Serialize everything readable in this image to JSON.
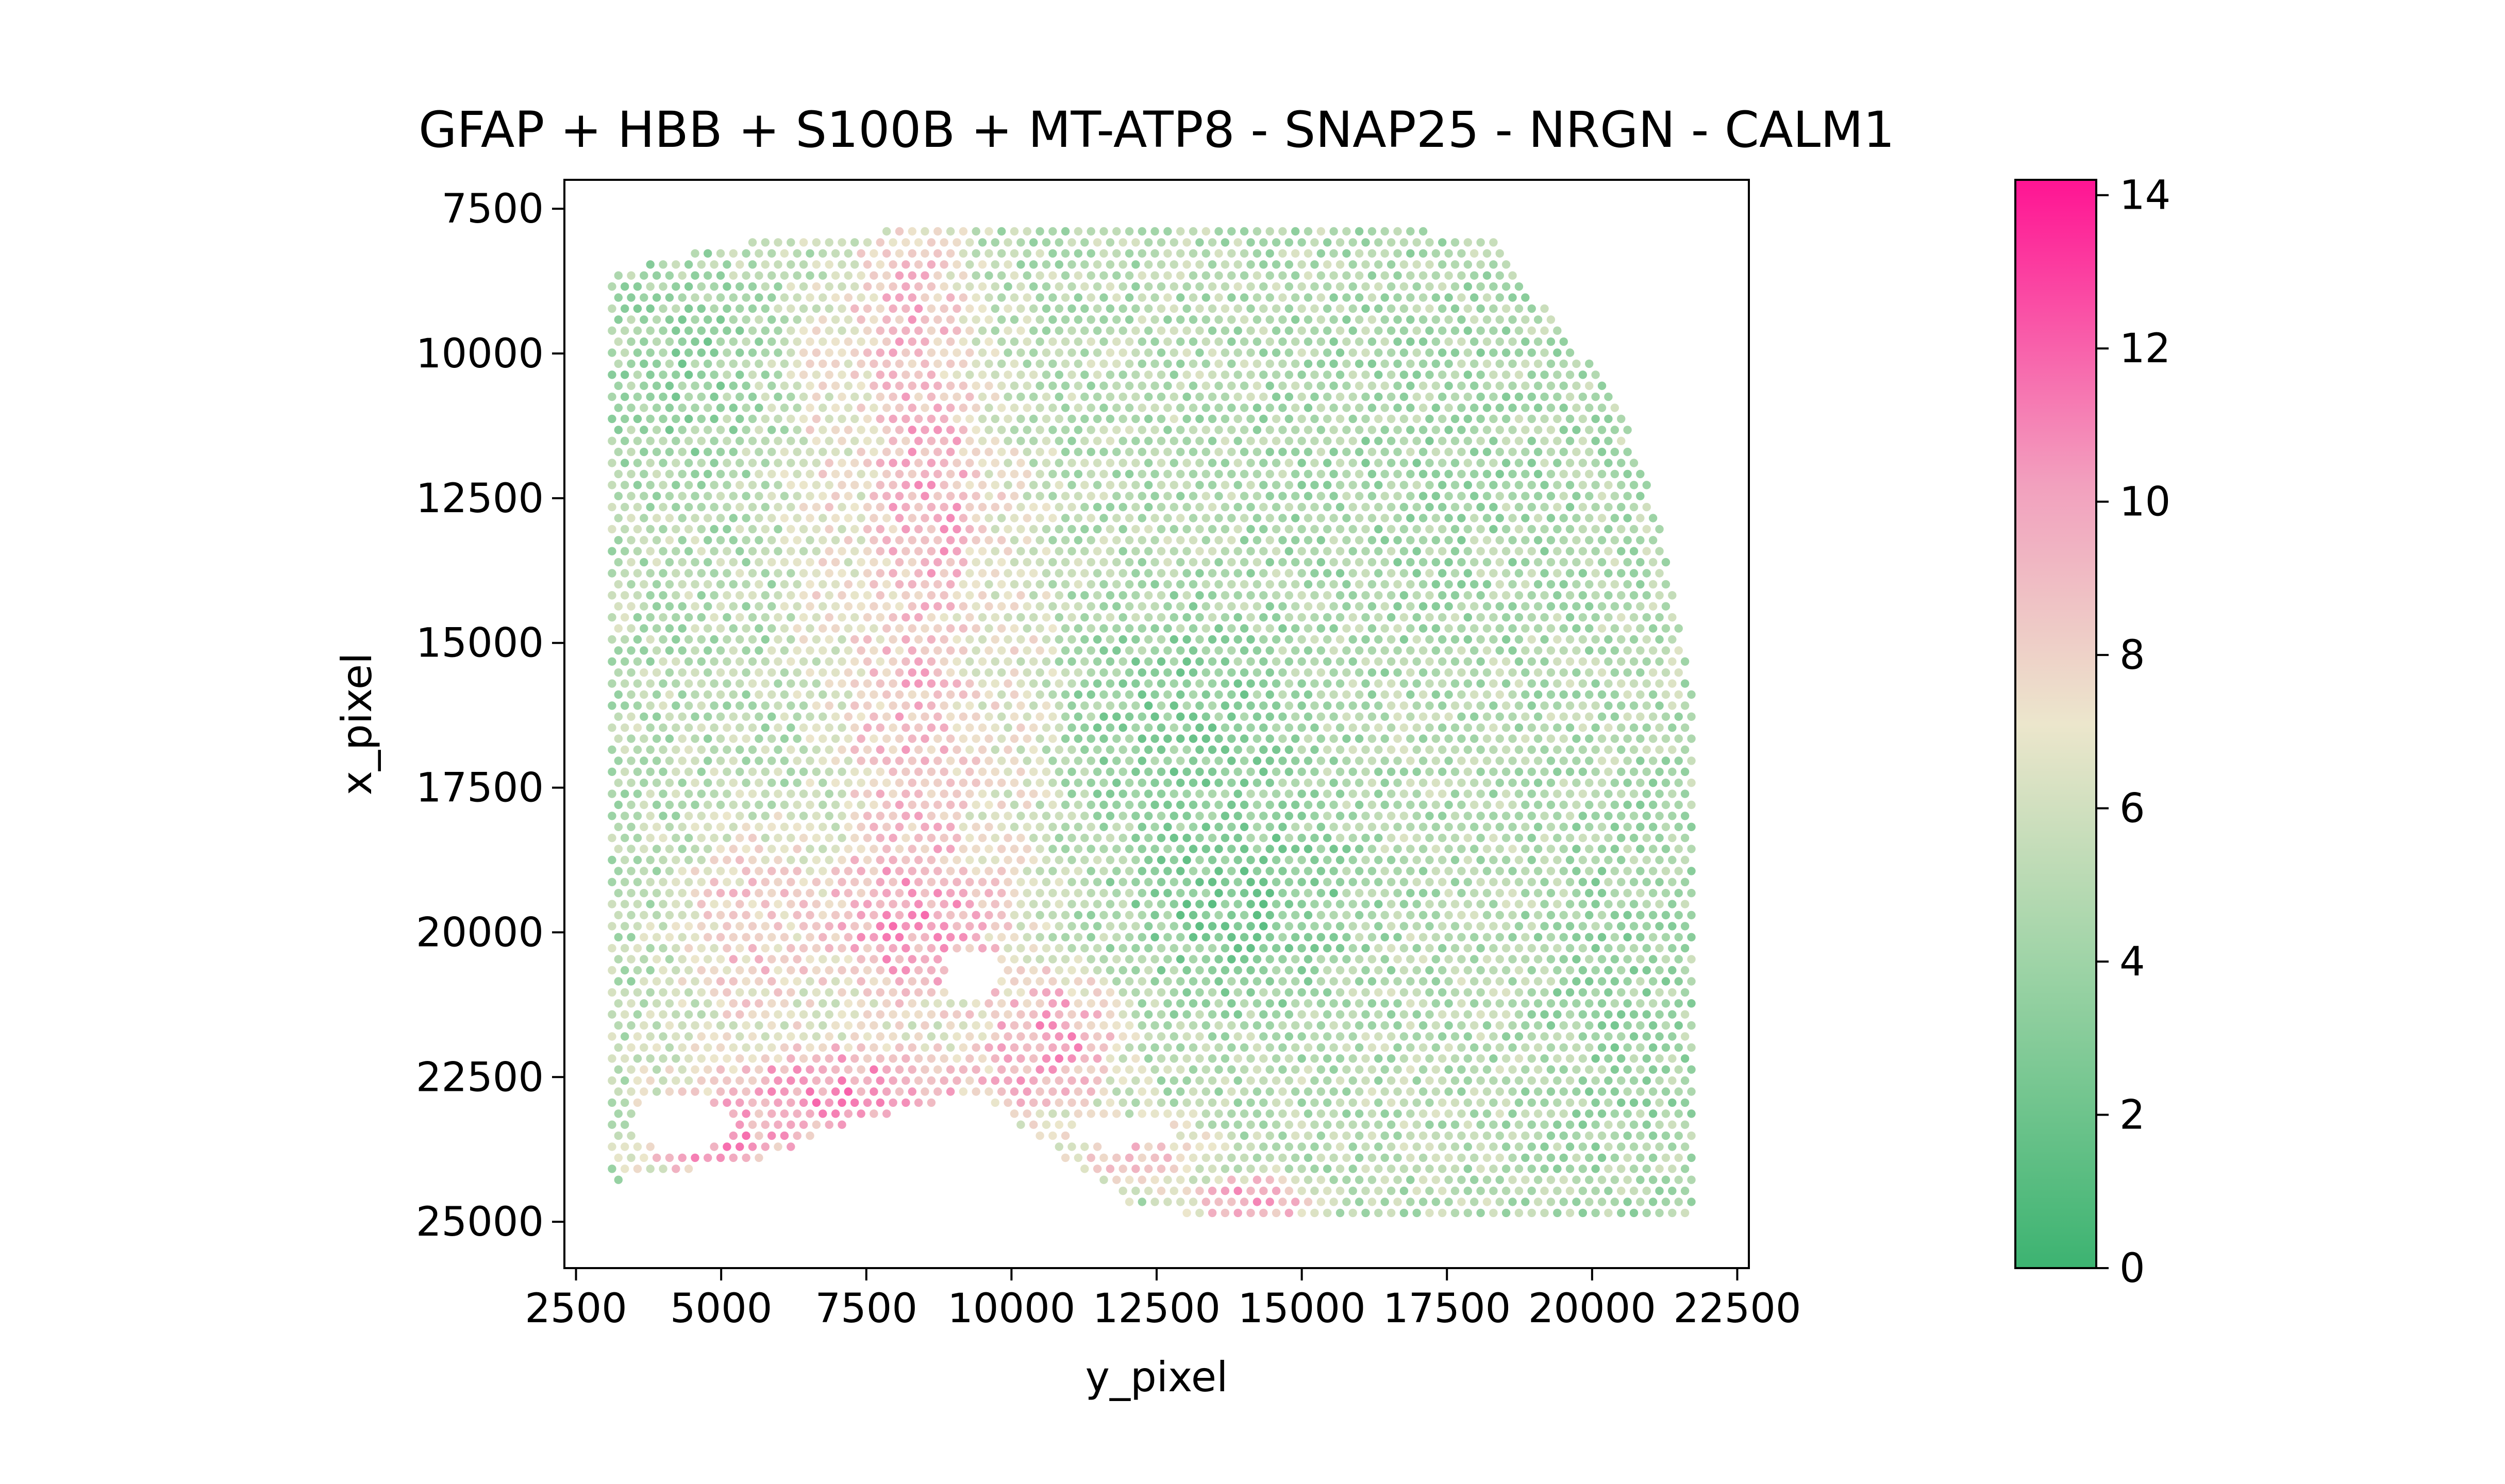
{
  "chart_data": {
    "type": "scatter",
    "title": "GFAP + HBB + S100B + MT-ATP8 - SNAP25 - NRGN - CALM1",
    "xlabel": "y_pixel",
    "ylabel": "x_pixel",
    "xlim": [
      2300,
      22700
    ],
    "ylim": [
      25800,
      7000
    ],
    "y_inverted": true,
    "xticks": [
      2500,
      5000,
      7500,
      10000,
      12500,
      15000,
      17500,
      20000,
      22500
    ],
    "yticks": [
      7500,
      10000,
      12500,
      15000,
      17500,
      20000,
      22500,
      25000
    ],
    "grid": false,
    "spot_spacing": 220,
    "colorbar": {
      "min": 0,
      "max": 14.2,
      "ticks": [
        0,
        2,
        4,
        6,
        8,
        10,
        12,
        14
      ],
      "colors": [
        "#3cb371",
        "#9fd4a7",
        "#ece6cc",
        "#f2a0be",
        "#ff1493"
      ]
    },
    "tissue_boundary": [
      [
        3100,
        8600
      ],
      [
        4500,
        8250
      ],
      [
        6000,
        8000
      ],
      [
        7500,
        7900
      ],
      [
        9500,
        7800
      ],
      [
        12000,
        7850
      ],
      [
        14000,
        7800
      ],
      [
        17000,
        7850
      ],
      [
        18300,
        8050
      ],
      [
        18800,
        8700
      ],
      [
        19200,
        9200
      ],
      [
        19900,
        10100
      ],
      [
        20500,
        11000
      ],
      [
        20900,
        12100
      ],
      [
        21200,
        13000
      ],
      [
        21400,
        14200
      ],
      [
        21600,
        15200
      ],
      [
        21800,
        16000
      ],
      [
        21800,
        25000
      ],
      [
        20000,
        25000
      ],
      [
        17000,
        25000
      ],
      [
        15000,
        25000
      ],
      [
        14000,
        24950
      ],
      [
        13000,
        24850
      ],
      [
        12000,
        24700
      ],
      [
        11500,
        24300
      ],
      [
        10600,
        23700
      ],
      [
        9700,
        23000
      ],
      [
        9200,
        22800
      ],
      [
        8500,
        23000
      ],
      [
        7000,
        23400
      ],
      [
        5800,
        23900
      ],
      [
        4500,
        24100
      ],
      [
        3100,
        24300
      ]
    ],
    "holes": [
      {
        "cx": 9300,
        "cy": 20700,
        "rx": 450,
        "ry": 400
      },
      {
        "cx": 4300,
        "cy": 23300,
        "rx": 900,
        "ry": 450
      },
      {
        "cx": 11900,
        "cy": 23450,
        "rx": 950,
        "ry": 260
      }
    ],
    "hot_regions": [
      {
        "cx": 8200,
        "cy": 9500,
        "rx": 900,
        "ry": 1600,
        "value": 10.5
      },
      {
        "cx": 8600,
        "cy": 12500,
        "rx": 900,
        "ry": 1800,
        "value": 11.5
      },
      {
        "cx": 8300,
        "cy": 16500,
        "rx": 1000,
        "ry": 2200,
        "value": 10.5
      },
      {
        "cx": 8300,
        "cy": 19800,
        "rx": 1400,
        "ry": 1300,
        "value": 12.0
      },
      {
        "cx": 5500,
        "cy": 20000,
        "rx": 1000,
        "ry": 1500,
        "value": 9.5
      },
      {
        "cx": 7000,
        "cy": 22800,
        "rx": 2200,
        "ry": 750,
        "value": 12.5
      },
      {
        "cx": 5000,
        "cy": 23700,
        "rx": 1100,
        "ry": 500,
        "value": 12.0
      },
      {
        "cx": 10600,
        "cy": 21900,
        "rx": 1000,
        "ry": 1000,
        "value": 12.0
      },
      {
        "cx": 12300,
        "cy": 23800,
        "rx": 1000,
        "ry": 500,
        "value": 10.0
      },
      {
        "cx": 14200,
        "cy": 24650,
        "rx": 800,
        "ry": 350,
        "value": 12.5
      },
      {
        "cx": 6800,
        "cy": 12500,
        "rx": 500,
        "ry": 3000,
        "value": 8.0
      },
      {
        "cx": 10000,
        "cy": 15500,
        "rx": 600,
        "ry": 3500,
        "value": 7.5
      }
    ],
    "cool_regions": [
      {
        "cx": 14000,
        "cy": 19500,
        "rx": 1600,
        "ry": 1400,
        "value": 1.8
      },
      {
        "cx": 13000,
        "cy": 16300,
        "rx": 1600,
        "ry": 1500,
        "value": 2.5
      },
      {
        "cx": 4200,
        "cy": 10200,
        "rx": 1000,
        "ry": 1500,
        "value": 3.0
      },
      {
        "cx": 17000,
        "cy": 12000,
        "rx": 2500,
        "ry": 3000,
        "value": 4.0
      },
      {
        "cx": 20500,
        "cy": 21000,
        "rx": 1200,
        "ry": 3000,
        "value": 3.5
      }
    ],
    "base_value": 5.0
  }
}
